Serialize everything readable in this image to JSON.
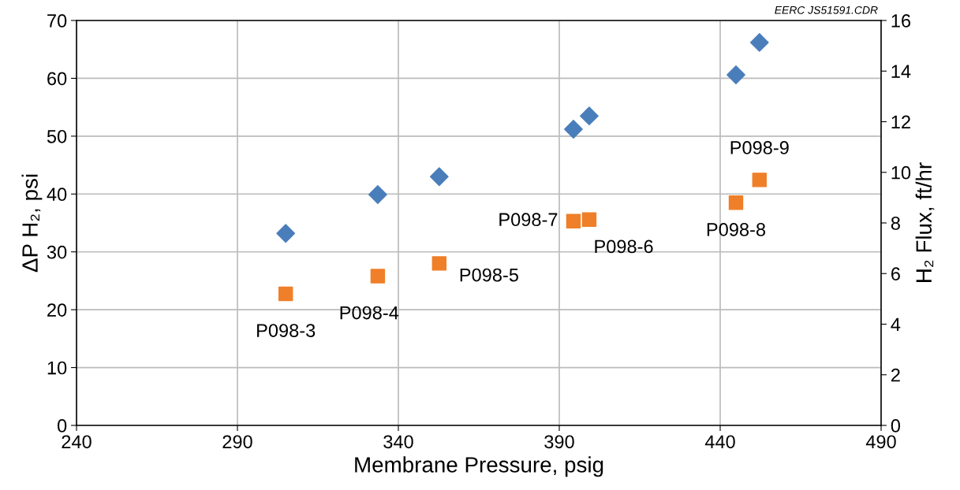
{
  "chart_data": {
    "type": "scatter",
    "xlabel": "Membrane Pressure, psig",
    "ylabel": "ΔP H₂, psi",
    "y2label": "H₂ Flux, ft/hr",
    "xlim": [
      240,
      490
    ],
    "xticks": [
      240,
      290,
      340,
      390,
      440,
      490
    ],
    "ylim": [
      0,
      70
    ],
    "yticks": [
      0,
      10,
      20,
      30,
      40,
      50,
      60,
      70
    ],
    "y2lim": [
      0,
      16
    ],
    "y2ticks": [
      0,
      2,
      4,
      6,
      8,
      10,
      12,
      14,
      16
    ],
    "grid": true,
    "legend": false,
    "series": [
      {
        "color": "#4a7ebb",
        "marker": "diamond",
        "x": [
          305,
          333.6,
          352.7,
          394.4,
          399.3,
          444.9,
          452.2
        ],
        "values": [
          33.2,
          39.9,
          43.0,
          51.2,
          53.5,
          60.6,
          66.2
        ]
      },
      {
        "color": "#f07f29",
        "marker": "square",
        "axis": "y2",
        "x": [
          305,
          333.6,
          352.7,
          394.4,
          399.3,
          444.9,
          452.2
        ],
        "values": [
          5.2,
          5.9,
          6.4,
          8.07,
          8.13,
          8.8,
          9.7
        ]
      }
    ],
    "annotations": [
      "P098-3",
      "P098-4",
      "P098-5",
      "P098-7",
      "P098-6",
      "P098-8",
      "P098-9",
      "EERC JS51591.CDR"
    ]
  }
}
